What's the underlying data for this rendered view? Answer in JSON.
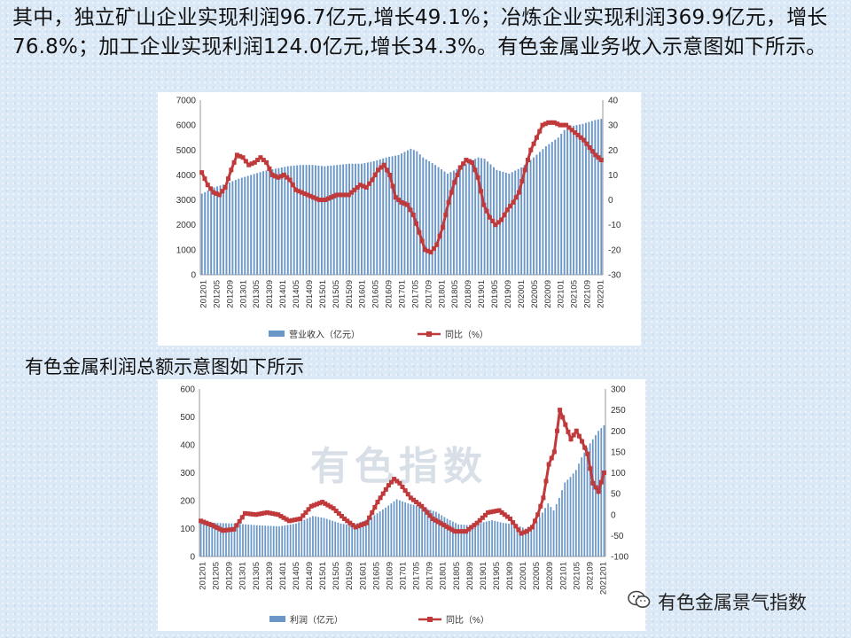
{
  "text": {
    "intro": "其中，独立矿山企业实现利润96.7亿元,增长49.1%；冶炼企业实现利润369.9亿元，增长76.8%；加工企业实现利润124.0亿元,增长34.3%。有色金属业务收入示意图如下所示。",
    "subtitle": "有色金属利润总额示意图如下所示",
    "watermark": "有色指数",
    "account_name": "有色金属景气指数"
  },
  "colors": {
    "bar": "#6b97c8",
    "line": "#c0393b"
  },
  "chart_data": [
    {
      "type": "bar",
      "x_ticks": [
        "201201",
        "201205",
        "201209",
        "201301",
        "201305",
        "201309",
        "201401",
        "201405",
        "201409",
        "201501",
        "201505",
        "201509",
        "201601",
        "201605",
        "201609",
        "201701",
        "201705",
        "201709",
        "201801",
        "201805",
        "201809",
        "201901",
        "201905",
        "201909",
        "202001",
        "202005",
        "202009",
        "202101",
        "202105",
        "202109",
        "202201"
      ],
      "ylim": [
        0,
        7000
      ],
      "yticks": [
        0,
        1000,
        2000,
        3000,
        4000,
        5000,
        6000,
        7000
      ],
      "y2lim": [
        -30,
        40
      ],
      "y2ticks": [
        -30,
        -20,
        -10,
        0,
        10,
        20,
        30,
        40
      ],
      "series": [
        {
          "name": "营业收入（亿元）",
          "type": "bar",
          "axis": "left",
          "anchors": [
            [
              0,
              3250
            ],
            [
              4,
              3500
            ],
            [
              8,
              3650
            ],
            [
              12,
              3850
            ],
            [
              16,
              4000
            ],
            [
              20,
              4150
            ],
            [
              24,
              4250
            ],
            [
              28,
              4350
            ],
            [
              32,
              4400
            ],
            [
              36,
              4400
            ],
            [
              40,
              4350
            ],
            [
              44,
              4400
            ],
            [
              48,
              4450
            ],
            [
              52,
              4450
            ],
            [
              56,
              4550
            ],
            [
              60,
              4700
            ],
            [
              64,
              4800
            ],
            [
              68,
              5050
            ],
            [
              70,
              4950
            ],
            [
              72,
              4700
            ],
            [
              76,
              4400
            ],
            [
              80,
              4050
            ],
            [
              84,
              4300
            ],
            [
              88,
              4600
            ],
            [
              90,
              4700
            ],
            [
              92,
              4650
            ],
            [
              96,
              4200
            ],
            [
              100,
              4050
            ],
            [
              104,
              4300
            ],
            [
              108,
              4700
            ],
            [
              112,
              5150
            ],
            [
              116,
              5500
            ],
            [
              118,
              5800
            ],
            [
              120,
              5950
            ],
            [
              124,
              6050
            ],
            [
              128,
              6200
            ],
            [
              130,
              6250
            ]
          ]
        },
        {
          "name": "同比（%）",
          "type": "line",
          "axis": "right",
          "anchors": [
            [
              0,
              11
            ],
            [
              2,
              6
            ],
            [
              4,
              3
            ],
            [
              6,
              2
            ],
            [
              8,
              5
            ],
            [
              10,
              12
            ],
            [
              12,
              18
            ],
            [
              14,
              17
            ],
            [
              16,
              14
            ],
            [
              18,
              15
            ],
            [
              20,
              17
            ],
            [
              22,
              15
            ],
            [
              24,
              10
            ],
            [
              26,
              9
            ],
            [
              28,
              10
            ],
            [
              30,
              8
            ],
            [
              32,
              4
            ],
            [
              34,
              3
            ],
            [
              36,
              2
            ],
            [
              38,
              1
            ],
            [
              40,
              0
            ],
            [
              42,
              0
            ],
            [
              44,
              1
            ],
            [
              46,
              2
            ],
            [
              48,
              2
            ],
            [
              50,
              2
            ],
            [
              52,
              4
            ],
            [
              54,
              6
            ],
            [
              56,
              5
            ],
            [
              58,
              8
            ],
            [
              60,
              12
            ],
            [
              62,
              14
            ],
            [
              64,
              10
            ],
            [
              66,
              1
            ],
            [
              68,
              -1
            ],
            [
              70,
              -2
            ],
            [
              72,
              -6
            ],
            [
              74,
              -13
            ],
            [
              76,
              -20
            ],
            [
              78,
              -21
            ],
            [
              80,
              -18
            ],
            [
              82,
              -11
            ],
            [
              84,
              -1
            ],
            [
              86,
              7
            ],
            [
              88,
              13
            ],
            [
              90,
              16
            ],
            [
              92,
              15
            ],
            [
              94,
              9
            ],
            [
              96,
              -2
            ],
            [
              98,
              -7
            ],
            [
              100,
              -10
            ],
            [
              102,
              -8
            ],
            [
              104,
              -4
            ],
            [
              106,
              -1
            ],
            [
              108,
              3
            ],
            [
              110,
              12
            ],
            [
              112,
              20
            ],
            [
              114,
              25
            ],
            [
              116,
              30
            ],
            [
              118,
              31
            ],
            [
              120,
              31
            ],
            [
              122,
              30
            ],
            [
              124,
              30
            ],
            [
              126,
              28
            ],
            [
              128,
              26
            ],
            [
              130,
              24
            ],
            [
              132,
              21
            ],
            [
              134,
              18
            ],
            [
              136,
              16
            ]
          ]
        }
      ]
    },
    {
      "type": "bar",
      "x_ticks": [
        "201201",
        "201205",
        "201209",
        "201301",
        "201305",
        "201309",
        "201401",
        "201405",
        "201409",
        "201501",
        "201505",
        "201509",
        "201601",
        "201605",
        "201609",
        "201701",
        "201705",
        "201709",
        "201801",
        "201805",
        "201809",
        "201901",
        "201905",
        "201909",
        "202001",
        "202005",
        "202009",
        "202101",
        "202105",
        "202109",
        "2021201"
      ],
      "ylim": [
        0,
        600
      ],
      "yticks": [
        0,
        100,
        200,
        300,
        400,
        500,
        600
      ],
      "y2lim": [
        -100,
        300
      ],
      "y2ticks": [
        -100,
        -50,
        0,
        50,
        100,
        150,
        200,
        250,
        300
      ],
      "series": [
        {
          "name": "利润（亿元）",
          "type": "bar",
          "axis": "left",
          "anchors": [
            [
              0,
              125
            ],
            [
              6,
              120
            ],
            [
              12,
              118
            ],
            [
              20,
              112
            ],
            [
              28,
              108
            ],
            [
              34,
              118
            ],
            [
              40,
              145
            ],
            [
              44,
              138
            ],
            [
              50,
              118
            ],
            [
              54,
              112
            ],
            [
              60,
              135
            ],
            [
              66,
              175
            ],
            [
              70,
              205
            ],
            [
              74,
              190
            ],
            [
              78,
              180
            ],
            [
              84,
              160
            ],
            [
              88,
              135
            ],
            [
              92,
              115
            ],
            [
              96,
              112
            ],
            [
              100,
              120
            ],
            [
              104,
              130
            ],
            [
              108,
              120
            ],
            [
              112,
              115
            ],
            [
              116,
              100
            ],
            [
              120,
              125
            ],
            [
              124,
              190
            ],
            [
              126,
              165
            ],
            [
              128,
              210
            ],
            [
              130,
              265
            ],
            [
              132,
              285
            ],
            [
              134,
              310
            ],
            [
              136,
              355
            ],
            [
              138,
              390
            ],
            [
              140,
              420
            ],
            [
              142,
              450
            ],
            [
              144,
              470
            ]
          ]
        },
        {
          "name": "同比（%）",
          "type": "line",
          "axis": "right",
          "anchors": [
            [
              0,
              -15
            ],
            [
              4,
              -25
            ],
            [
              8,
              -38
            ],
            [
              12,
              -35
            ],
            [
              16,
              3
            ],
            [
              20,
              0
            ],
            [
              24,
              5
            ],
            [
              28,
              0
            ],
            [
              32,
              -15
            ],
            [
              36,
              -10
            ],
            [
              40,
              20
            ],
            [
              44,
              30
            ],
            [
              48,
              15
            ],
            [
              52,
              -10
            ],
            [
              56,
              -30
            ],
            [
              60,
              -20
            ],
            [
              64,
              30
            ],
            [
              68,
              70
            ],
            [
              70,
              85
            ],
            [
              72,
              75
            ],
            [
              76,
              40
            ],
            [
              80,
              20
            ],
            [
              84,
              -10
            ],
            [
              88,
              -25
            ],
            [
              92,
              -40
            ],
            [
              96,
              -40
            ],
            [
              100,
              -20
            ],
            [
              104,
              5
            ],
            [
              108,
              10
            ],
            [
              112,
              -10
            ],
            [
              116,
              -45
            ],
            [
              118,
              -40
            ],
            [
              120,
              -30
            ],
            [
              122,
              0
            ],
            [
              124,
              40
            ],
            [
              126,
              120
            ],
            [
              128,
              150
            ],
            [
              130,
              250
            ],
            [
              132,
              215
            ],
            [
              134,
              180
            ],
            [
              136,
              200
            ],
            [
              138,
              175
            ],
            [
              140,
              145
            ],
            [
              142,
              75
            ],
            [
              144,
              55
            ],
            [
              146,
              100
            ]
          ]
        }
      ]
    }
  ]
}
